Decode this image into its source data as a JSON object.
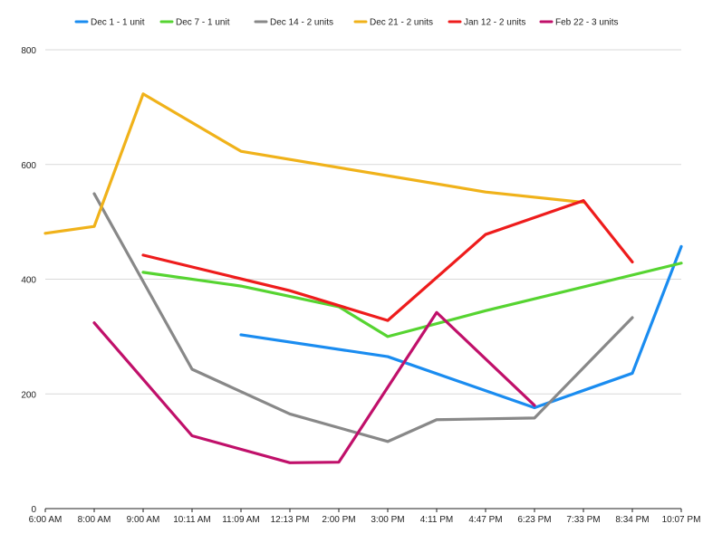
{
  "chart_data": {
    "type": "line",
    "x": [
      "6:00 AM",
      "8:00 AM",
      "9:00 AM",
      "10:11 AM",
      "11:09 AM",
      "12:13 PM",
      "2:00 PM",
      "3:00 PM",
      "4:11 PM",
      "4:47 PM",
      "6:23 PM",
      "7:33 PM",
      "8:34 PM",
      "10:07 PM"
    ],
    "ylim": [
      0,
      800
    ],
    "yticks": [
      0,
      200,
      400,
      600,
      800
    ],
    "grid": true,
    "legend_position": "top",
    "series": [
      {
        "name": "Dec 1 - 1 unit",
        "color": "#1a8cf0",
        "points": [
          [
            "11:09 AM",
            303
          ],
          [
            "3:00 PM",
            265
          ],
          [
            "6:23 PM",
            176
          ],
          [
            "8:34 PM",
            236
          ],
          [
            "10:07 PM",
            457
          ]
        ]
      },
      {
        "name": "Dec 7 - 1 unit",
        "color": "#56d431",
        "points": [
          [
            "9:00 AM",
            412
          ],
          [
            "11:09 AM",
            388
          ],
          [
            "2:00 PM",
            352
          ],
          [
            "3:00 PM",
            300
          ],
          [
            "4:47 PM",
            345
          ],
          [
            "10:07 PM",
            428
          ]
        ]
      },
      {
        "name": "Dec 14 - 2 units",
        "color": "#888888",
        "points": [
          [
            "8:00 AM",
            549
          ],
          [
            "10:11 AM",
            243
          ],
          [
            "12:13 PM",
            165
          ],
          [
            "3:00 PM",
            117
          ],
          [
            "4:11 PM",
            155
          ],
          [
            "6:23 PM",
            158
          ],
          [
            "8:34 PM",
            333
          ]
        ]
      },
      {
        "name": "Dec 21 - 2 units",
        "color": "#f0b21a",
        "points": [
          [
            "6:00 AM",
            480
          ],
          [
            "8:00 AM",
            492
          ],
          [
            "9:00 AM",
            723
          ],
          [
            "11:09 AM",
            623
          ],
          [
            "4:47 PM",
            552
          ],
          [
            "7:33 PM",
            534
          ]
        ]
      },
      {
        "name": "Jan 12 - 2 units",
        "color": "#ee1c1c",
        "points": [
          [
            "9:00 AM",
            442
          ],
          [
            "12:13 PM",
            380
          ],
          [
            "3:00 PM",
            328
          ],
          [
            "4:47 PM",
            478
          ],
          [
            "7:33 PM",
            537
          ],
          [
            "8:34 PM",
            430
          ]
        ]
      },
      {
        "name": "Feb 22 - 3 units",
        "color": "#c0106a",
        "points": [
          [
            "8:00 AM",
            324
          ],
          [
            "10:11 AM",
            127
          ],
          [
            "12:13 PM",
            80
          ],
          [
            "2:00 PM",
            81
          ],
          [
            "4:11 PM",
            342
          ],
          [
            "6:23 PM",
            180
          ]
        ]
      }
    ]
  }
}
